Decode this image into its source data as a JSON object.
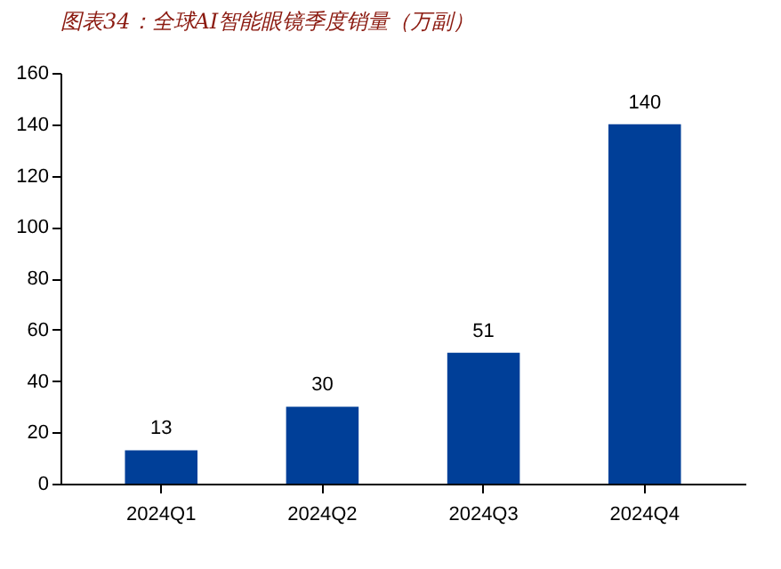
{
  "chart_data": {
    "type": "bar",
    "title": "图表34：全球AI智能眼镜季度销量（万副）",
    "categories": [
      "2024Q1",
      "2024Q2",
      "2024Q3",
      "2024Q4"
    ],
    "values": [
      13,
      30,
      51,
      140
    ],
    "color": "#003f98",
    "ylim": [
      0,
      160
    ],
    "yticks": [
      0,
      20,
      40,
      60,
      80,
      100,
      120,
      140,
      160
    ],
    "grid": false,
    "data_labels": true
  }
}
